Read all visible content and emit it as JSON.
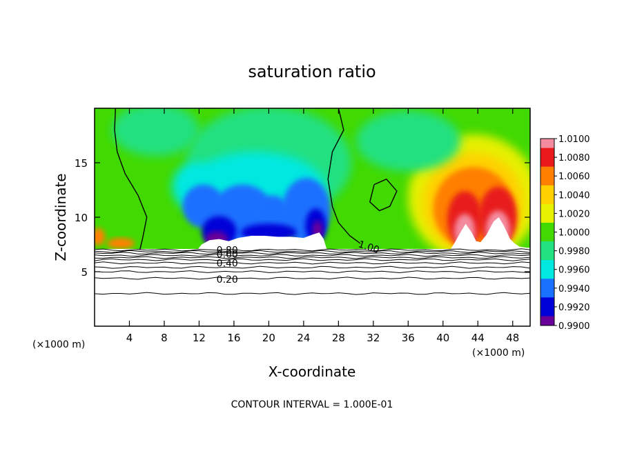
{
  "chart_data": {
    "type": "heatmap",
    "title": "saturation ratio",
    "xlabel": "X-coordinate",
    "ylabel": "Z-coordinate",
    "x_unit": "(×1000 m)",
    "x_unit_right": "(×1000 m)",
    "footer": "CONTOUR INTERVAL = 1.000E-01",
    "xlim": [
      0,
      50
    ],
    "ylim": [
      0,
      20
    ],
    "x_ticks": [
      4,
      8,
      12,
      16,
      20,
      24,
      28,
      32,
      36,
      40,
      44,
      48
    ],
    "x_tick_labels": [
      "4",
      "8",
      "12",
      "16",
      "20",
      "24",
      "28",
      "32",
      "36",
      "40",
      "44",
      "48"
    ],
    "y_ticks": [
      5,
      10,
      15
    ],
    "y_tick_labels": [
      "5",
      "10",
      "15"
    ],
    "colorbar": {
      "labels": [
        "1.0100",
        "1.0080",
        "1.0060",
        "1.0040",
        "1.0020",
        "1.0000",
        "0.9980",
        "0.9960",
        "0.9940",
        "0.9920",
        "0.9900"
      ],
      "levels": [
        1.01,
        1.008,
        1.006,
        1.004,
        1.002,
        1.0,
        0.998,
        0.996,
        0.994,
        0.992,
        0.99
      ],
      "colors": [
        "#f48ca0",
        "#e81a1a",
        "#ff8000",
        "#ffd000",
        "#e6f000",
        "#41d900",
        "#22e080",
        "#00e8e0",
        "#1a70ff",
        "#0000d8",
        "#6a009a"
      ]
    },
    "contour_labels": [
      {
        "text": "1.00",
        "x": 30.2,
        "z": 7.6
      },
      {
        "text": "0.80",
        "x": 14.0,
        "z": 7.0
      },
      {
        "text": "0.60",
        "x": 14.0,
        "z": 6.6
      },
      {
        "text": "0.40",
        "x": 14.0,
        "z": 5.8
      },
      {
        "text": "0.20",
        "x": 14.0,
        "z": 4.3
      }
    ],
    "contour_levels_z": [
      7.0,
      6.85,
      6.7,
      6.5,
      6.3,
      6.1,
      5.8,
      5.4,
      5.0,
      4.4,
      3.0
    ],
    "one_contour_left": [
      [
        2.4,
        20
      ],
      [
        2.3,
        18
      ],
      [
        2.6,
        16
      ],
      [
        3.5,
        14
      ],
      [
        5.0,
        12
      ],
      [
        6.0,
        10
      ],
      [
        5.5,
        8
      ],
      [
        5.2,
        7
      ]
    ],
    "one_contour_mid": [
      [
        28.0,
        20
      ],
      [
        28.6,
        18
      ],
      [
        27.3,
        16
      ],
      [
        26.8,
        13.5
      ],
      [
        27.3,
        11
      ],
      [
        28.0,
        9.5
      ],
      [
        29.3,
        8.3
      ],
      [
        30.5,
        7.6
      ]
    ],
    "one_contour_loop": [
      [
        32.1,
        13
      ],
      [
        33.5,
        13.5
      ],
      [
        34.7,
        12.4
      ],
      [
        33.9,
        11.0
      ],
      [
        32.7,
        10.6
      ],
      [
        31.6,
        11.4
      ],
      [
        32.1,
        13
      ]
    ],
    "data_regions": [
      {
        "level": 0.998,
        "x": 12,
        "z": 13.5
      },
      {
        "level": 0.996,
        "x": 18,
        "z": 12.5
      },
      {
        "level": 0.994,
        "x": 16,
        "z": 10.5
      },
      {
        "level": 0.992,
        "x": 14,
        "z": 8.5
      },
      {
        "level": 0.99,
        "x": 14.5,
        "z": 8.2
      },
      {
        "level": 1.006,
        "x": 43.5,
        "z": 11.0
      },
      {
        "level": 1.01,
        "x": 46.0,
        "z": 9.0
      },
      {
        "level": 1.0,
        "x": 33,
        "z": 15
      }
    ]
  }
}
